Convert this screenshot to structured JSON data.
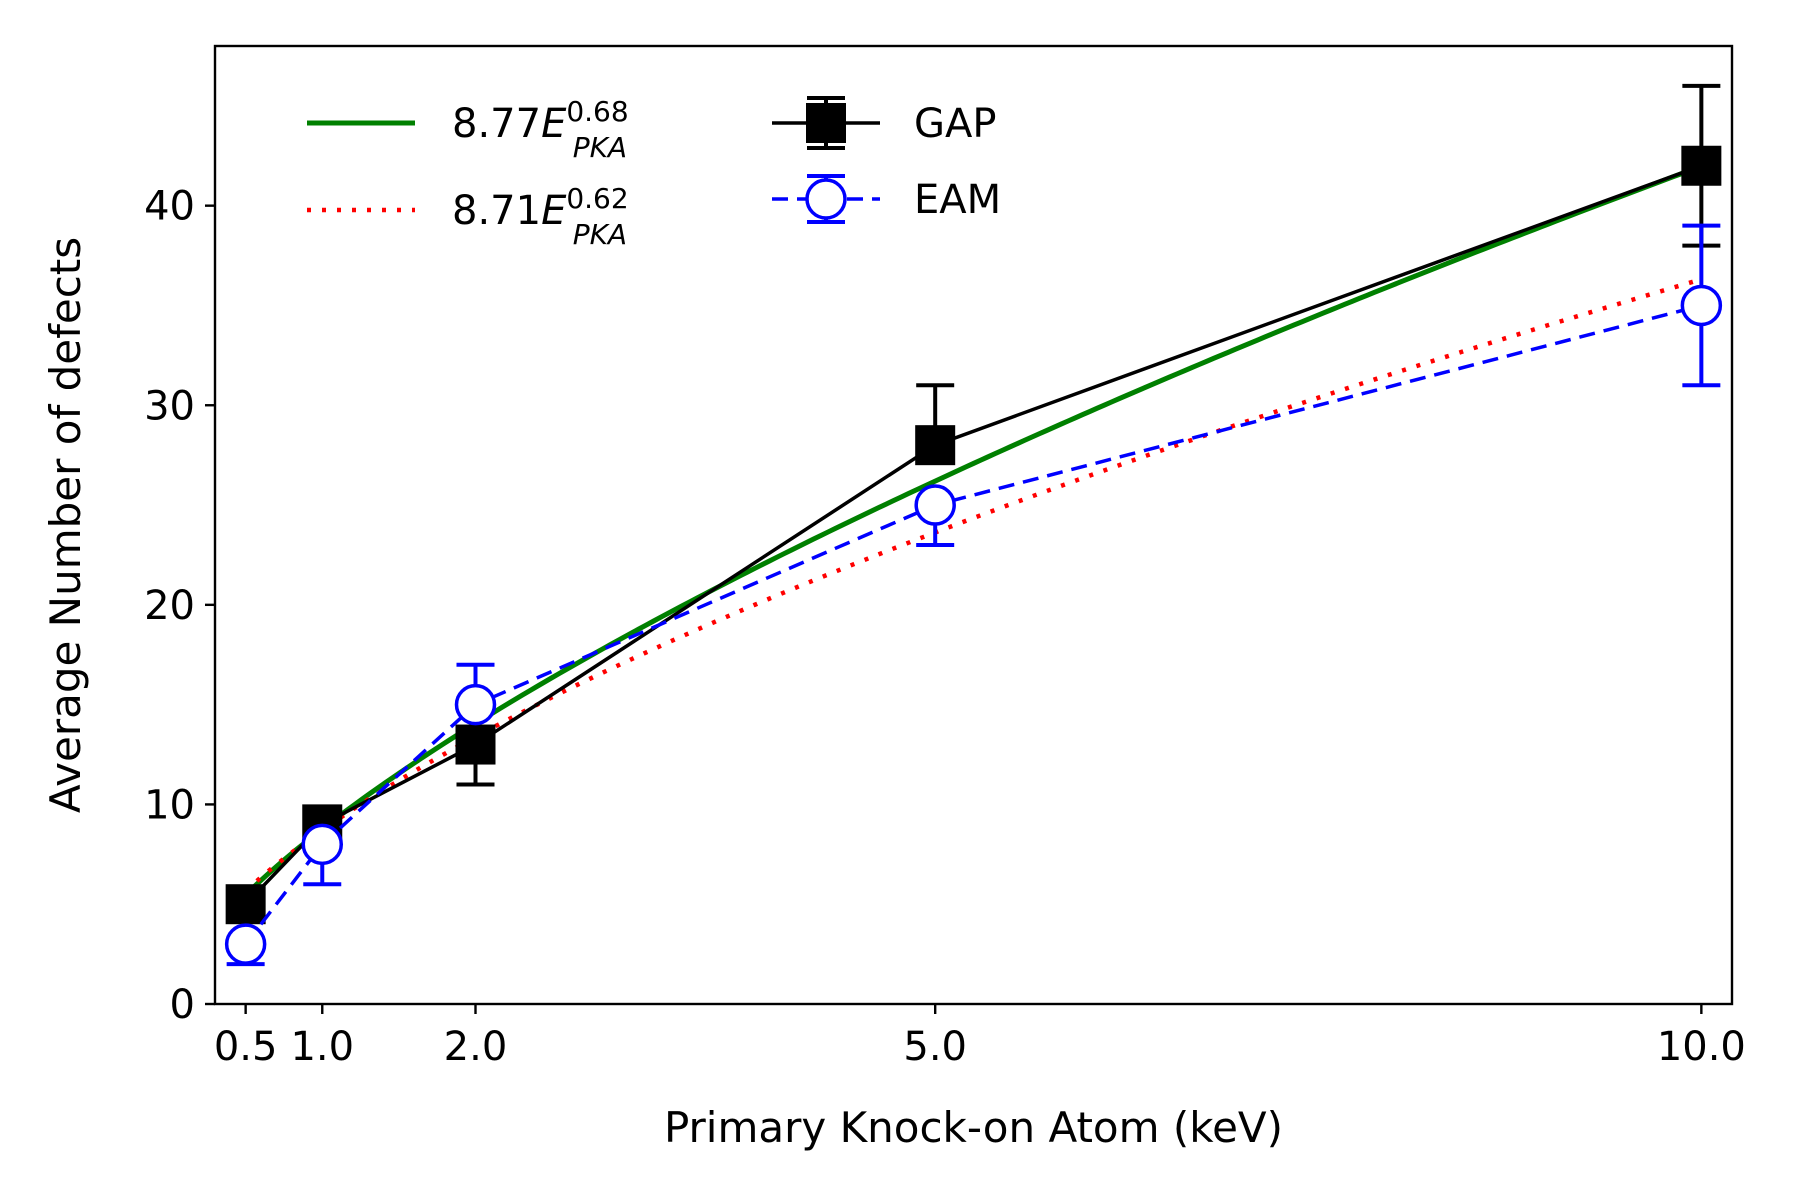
{
  "chart_data": {
    "type": "line",
    "title": "",
    "xlabel": "Primary Knock-on Atom (keV)",
    "ylabel": "Average Number of defects",
    "xlim": [
      0.3,
      10.2
    ],
    "ylim": [
      0,
      48
    ],
    "xticks": [
      0.5,
      1.0,
      2.0,
      5.0,
      10.0
    ],
    "xtick_labels": [
      "0.5",
      "1.0",
      "2.0",
      "5.0",
      "10.0"
    ],
    "yticks": [
      0,
      10,
      20,
      30,
      40
    ],
    "ytick_labels": [
      "0",
      "10",
      "20",
      "30",
      "40"
    ],
    "grid": false,
    "legend_placement": "top-left",
    "x": [
      0.5,
      1.0,
      2.0,
      5.0,
      10.0
    ],
    "series": [
      {
        "key": "gap",
        "name": "GAP",
        "color": "#000000",
        "line_style": "solid",
        "marker": "filled-square",
        "values": [
          5,
          9,
          13,
          28,
          42
        ],
        "err_low": [
          5,
          9,
          11,
          28,
          38
        ],
        "err_high": [
          5,
          9,
          13,
          31,
          46
        ]
      },
      {
        "key": "eam",
        "name": "EAM",
        "color": "#0000ff",
        "line_style": "dashed",
        "marker": "open-circle",
        "values": [
          3,
          8,
          15,
          25,
          35
        ],
        "err_low": [
          2,
          6,
          15,
          23,
          31
        ],
        "err_high": [
          3,
          8,
          17,
          25,
          39
        ]
      }
    ],
    "fits": [
      {
        "key": "fit_gap",
        "coef_text": "8.77",
        "base_text": "E",
        "exp_text": "0.68",
        "sub_text": "PKA",
        "coef": 8.77,
        "exponent": 0.68,
        "color": "#008000",
        "line_style": "solid"
      },
      {
        "key": "fit_eam",
        "coef_text": "8.71",
        "base_text": "E",
        "exp_text": "0.62",
        "sub_text": "PKA",
        "coef": 8.71,
        "exponent": 0.62,
        "color": "#ff0000",
        "line_style": "dotted"
      }
    ]
  }
}
